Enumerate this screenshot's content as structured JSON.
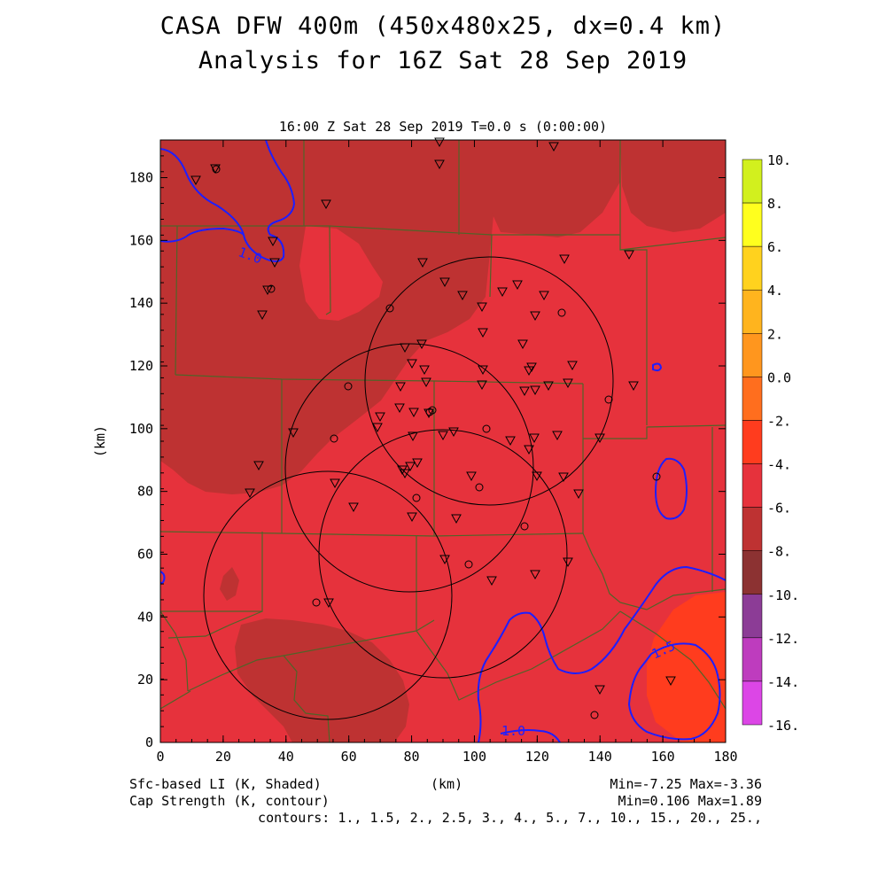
{
  "header": {
    "title_line1": "CASA DFW 400m (450x480x25, dx=0.4 km)",
    "title_line2": "Analysis for 16Z Sat 28 Sep 2019",
    "subtitle": "16:00 Z Sat 28 Sep 2019    T=0.0 s (0:00:00)"
  },
  "axes": {
    "x_label": "(km)",
    "y_label": "(km)",
    "x_ticks": [
      "0",
      "20",
      "40",
      "60",
      "80",
      "100",
      "120",
      "140",
      "160",
      "180"
    ],
    "y_ticks": [
      "0",
      "20",
      "40",
      "60",
      "80",
      "100",
      "120",
      "140",
      "160",
      "180"
    ]
  },
  "colorbar": {
    "labels": [
      "10.",
      "8.",
      "6.",
      "4.",
      "2.",
      "0.0",
      "-2.",
      "-4.",
      "-6.",
      "-8.",
      "-10.",
      "-12.",
      "-14.",
      "-16."
    ],
    "colors": [
      "#a8e41e",
      "#d2f01e",
      "#ffff1e",
      "#ffd21e",
      "#ffb41e",
      "#ff961e",
      "#ff6e1e",
      "#ff3c1e",
      "#e6323c",
      "#be3232",
      "#8c3232",
      "#8c3c96",
      "#be3cbe",
      "#dc46e6"
    ]
  },
  "contour_labels": [
    "1.0",
    "1.0",
    "1.5"
  ],
  "footer": {
    "field1": "Sfc-based LI (K, Shaded)",
    "field2": "Cap Strength (K, contour)",
    "x_unit": "(km)",
    "stats1": "Min=-7.25 Max=-3.36",
    "stats2": "Min=0.106 Max=1.89",
    "contours": "contours: 1., 1.5, 2., 2.5, 3., 4., 5., 7., 10., 15., 20., 25.,"
  },
  "map_colors": {
    "base": "#e6323c",
    "dark": "#be3232",
    "bright": "#ff3c1e",
    "contour": "#1e1eff",
    "county_lines": "#506428"
  }
}
